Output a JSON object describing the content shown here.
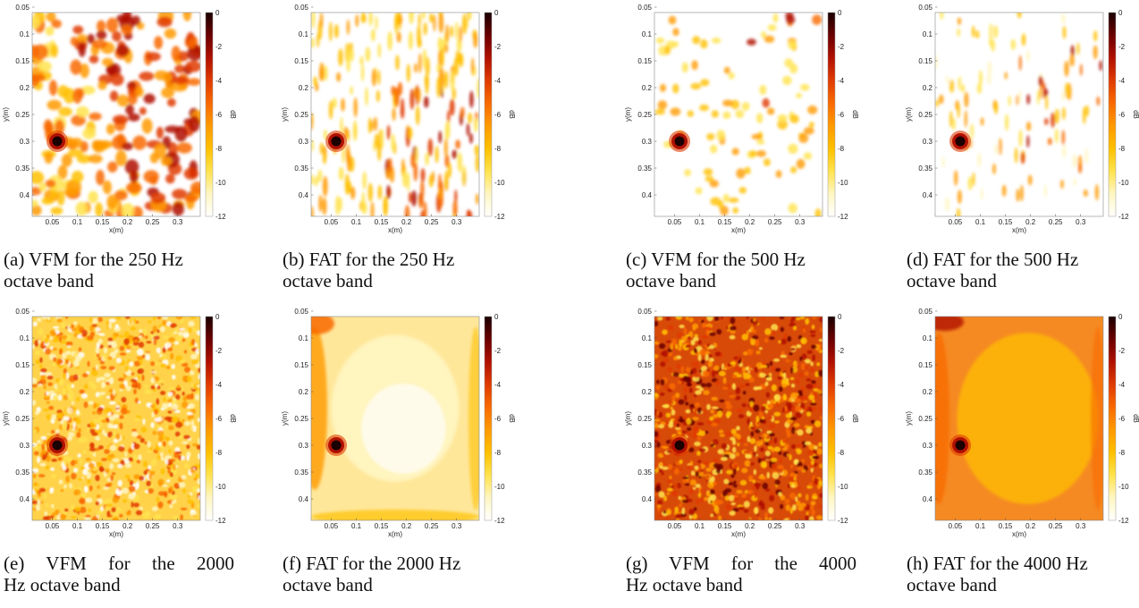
{
  "chart_data": [
    {
      "id": "a",
      "type": "heatmap",
      "caption": [
        "(a) VFM for the 250 Hz",
        "octave band"
      ],
      "pattern": "blobs-large",
      "xlabel": "x(m)",
      "ylabel": "y(m)",
      "cbar_label": "dB",
      "xlim": [
        0.01,
        0.345
      ],
      "ylim": [
        0.06,
        0.44
      ],
      "xticks": [
        "0.05",
        "0.1",
        "0.15",
        "0.2",
        "0.25",
        "0.3"
      ],
      "yticks": [
        "0.05",
        "0.1",
        "0.15",
        "0.2",
        "0.25",
        "0.3",
        "0.35",
        "0.4"
      ],
      "cbar_range": [
        -12,
        0
      ],
      "cbar_ticks": [
        "0",
        "-2",
        "-4",
        "-6",
        "-8",
        "-10",
        "-12"
      ],
      "source": {
        "x": 0.06,
        "y": 0.3,
        "level_db": 0
      }
    },
    {
      "id": "b",
      "type": "heatmap",
      "caption": [
        "(b) FAT for the 250 Hz",
        "octave band"
      ],
      "pattern": "streaks",
      "xlabel": "x(m)",
      "ylabel": "y(m)",
      "cbar_label": "dB",
      "xlim": [
        0.01,
        0.345
      ],
      "ylim": [
        0.06,
        0.44
      ],
      "xticks": [
        "0.05",
        "0.1",
        "0.15",
        "0.2",
        "0.25",
        "0.3"
      ],
      "yticks": [
        "0.05",
        "0.1",
        "0.15",
        "0.2",
        "0.25",
        "0.3",
        "0.35",
        "0.4"
      ],
      "cbar_range": [
        -12,
        0
      ],
      "cbar_ticks": [
        "0",
        "-2",
        "-4",
        "-6",
        "-8",
        "-10",
        "-12"
      ],
      "source": {
        "x": 0.06,
        "y": 0.3,
        "level_db": 0
      }
    },
    {
      "id": "c",
      "type": "heatmap",
      "caption": [
        "(c) VFM for the 500 Hz",
        "octave band"
      ],
      "pattern": "sparse-blobs",
      "xlabel": "x(m)",
      "ylabel": "y(m)",
      "cbar_label": "dB",
      "xlim": [
        0.01,
        0.345
      ],
      "ylim": [
        0.06,
        0.44
      ],
      "xticks": [
        "0.05",
        "0.1",
        "0.15",
        "0.2",
        "0.25",
        "0.3"
      ],
      "yticks": [
        "0.05",
        "0.1",
        "0.15",
        "0.2",
        "0.25",
        "0.3",
        "0.35",
        "0.4"
      ],
      "cbar_range": [
        -12,
        0
      ],
      "cbar_ticks": [
        "0",
        "-2",
        "-4",
        "-6",
        "-8",
        "-10",
        "-12"
      ],
      "source": {
        "x": 0.06,
        "y": 0.3,
        "level_db": 0
      }
    },
    {
      "id": "d",
      "type": "heatmap",
      "caption": [
        "(d) FAT for the 500 Hz",
        "octave band"
      ],
      "pattern": "sparse-streaks",
      "xlabel": "x(m)",
      "ylabel": "y(m)",
      "cbar_label": "dB",
      "xlim": [
        0.01,
        0.345
      ],
      "ylim": [
        0.06,
        0.44
      ],
      "xticks": [
        "0.05",
        "0.1",
        "0.15",
        "0.2",
        "0.25",
        "0.3"
      ],
      "yticks": [
        "0.05",
        "0.1",
        "0.15",
        "0.2",
        "0.25",
        "0.3",
        "0.35",
        "0.4"
      ],
      "cbar_range": [
        -12,
        0
      ],
      "cbar_ticks": [
        "0",
        "-2",
        "-4",
        "-6",
        "-8",
        "-10",
        "-12"
      ],
      "source": {
        "x": 0.06,
        "y": 0.3,
        "level_db": 0
      }
    },
    {
      "id": "e",
      "type": "heatmap",
      "caption": [
        "(e)  VFM  for  the  2000",
        "Hz octave band"
      ],
      "pattern": "speckle-medium",
      "xlabel": "x(m)",
      "ylabel": "y(m)",
      "cbar_label": "dB",
      "xlim": [
        0.01,
        0.345
      ],
      "ylim": [
        0.06,
        0.44
      ],
      "xticks": [
        "0.05",
        "0.1",
        "0.15",
        "0.2",
        "0.25",
        "0.3"
      ],
      "yticks": [
        "0.05",
        "0.1",
        "0.15",
        "0.2",
        "0.25",
        "0.3",
        "0.35",
        "0.4"
      ],
      "cbar_range": [
        -12,
        0
      ],
      "cbar_ticks": [
        "0",
        "-2",
        "-4",
        "-6",
        "-8",
        "-10",
        "-12"
      ],
      "source": {
        "x": 0.06,
        "y": 0.3,
        "level_db": 0
      }
    },
    {
      "id": "f",
      "type": "heatmap",
      "caption": [
        "(f) FAT for the 2000 Hz",
        "octave band"
      ],
      "pattern": "smooth-light",
      "xlabel": "x(m)",
      "ylabel": "y(m)",
      "cbar_label": "dB",
      "xlim": [
        0.01,
        0.345
      ],
      "ylim": [
        0.06,
        0.44
      ],
      "xticks": [
        "0.05",
        "0.1",
        "0.15",
        "0.2",
        "0.25",
        "0.3"
      ],
      "yticks": [
        "0.05",
        "0.1",
        "0.15",
        "0.2",
        "0.25",
        "0.3",
        "0.35",
        "0.4"
      ],
      "cbar_range": [
        -12,
        0
      ],
      "cbar_ticks": [
        "0",
        "-2",
        "-4",
        "-6",
        "-8",
        "-10",
        "-12"
      ],
      "source": {
        "x": 0.06,
        "y": 0.3,
        "level_db": 0
      }
    },
    {
      "id": "g",
      "type": "heatmap",
      "caption": [
        "(g)  VFM  for  the  4000",
        "Hz octave band"
      ],
      "pattern": "speckle-dark",
      "xlabel": "x(m)",
      "ylabel": "y(m)",
      "cbar_label": "dB",
      "xlim": [
        0.01,
        0.345
      ],
      "ylim": [
        0.06,
        0.44
      ],
      "xticks": [
        "0.05",
        "0.1",
        "0.15",
        "0.2",
        "0.25",
        "0.3"
      ],
      "yticks": [
        "0.05",
        "0.1",
        "0.15",
        "0.2",
        "0.25",
        "0.3",
        "0.35",
        "0.4"
      ],
      "cbar_range": [
        -12,
        0
      ],
      "cbar_ticks": [
        "0",
        "-2",
        "-4",
        "-6",
        "-8",
        "-10",
        "-12"
      ],
      "source": {
        "x": 0.06,
        "y": 0.3,
        "level_db": 0
      }
    },
    {
      "id": "h",
      "type": "heatmap",
      "caption": [
        "(h) FAT for the 4000 Hz",
        "octave band"
      ],
      "pattern": "smooth-orange",
      "xlabel": "x(m)",
      "ylabel": "y(m)",
      "cbar_label": "dB",
      "xlim": [
        0.01,
        0.345
      ],
      "ylim": [
        0.06,
        0.44
      ],
      "xticks": [
        "0.05",
        "0.1",
        "0.15",
        "0.2",
        "0.25",
        "0.3"
      ],
      "yticks": [
        "0.05",
        "0.1",
        "0.15",
        "0.2",
        "0.25",
        "0.3",
        "0.35",
        "0.4"
      ],
      "cbar_range": [
        -12,
        0
      ],
      "cbar_ticks": [
        "0",
        "-2",
        "-4",
        "-6",
        "-8",
        "-10",
        "-12"
      ],
      "source": {
        "x": 0.06,
        "y": 0.3,
        "level_db": 0
      }
    }
  ],
  "colormap": [
    "#ffffff",
    "#fff6c2",
    "#ffe34d",
    "#ffc000",
    "#ff9a00",
    "#f86a00",
    "#e03a00",
    "#b01000",
    "#6a0000",
    "#1a0000"
  ]
}
